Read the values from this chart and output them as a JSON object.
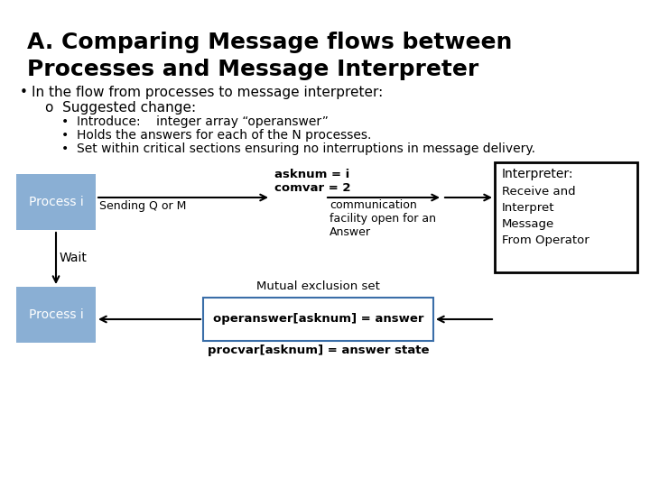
{
  "title_line1": "A. Comparing Message flows between",
  "title_line2": "Processes and Message Interpreter",
  "bullet1": "In the flow from processes to message interpreter:",
  "sub_bullet1": "Suggested change:",
  "sub_sub1": "Introduce:    integer array “operanswer”",
  "sub_sub2": "Holds the answers for each of the N processes.",
  "sub_sub3": "Set within critical sections ensuring no interruptions in message delivery.",
  "process_label": "Process i",
  "wait_label": "Wait",
  "interpreter_label": "Interpreter:",
  "interpreter_body": "Receive and\nInterpret\nMessage\nFrom Operator",
  "send_label": "Sending Q or M",
  "asknum_label": "asknum = i\ncomvar = 2",
  "comm_label": "communication\nfacility open for an\nAnswer",
  "mutual_label": "Mutual exclusion set",
  "operanswer_label": "operanswer[asknum] = answer",
  "procvar_label": "procvar[asknum] = answer state",
  "process_box_color": "#8aafd4",
  "interpreter_box_edge": "#000000",
  "operanswer_box_edge": "#3a6ea8",
  "bg_color": "#ffffff",
  "text_color": "#000000"
}
